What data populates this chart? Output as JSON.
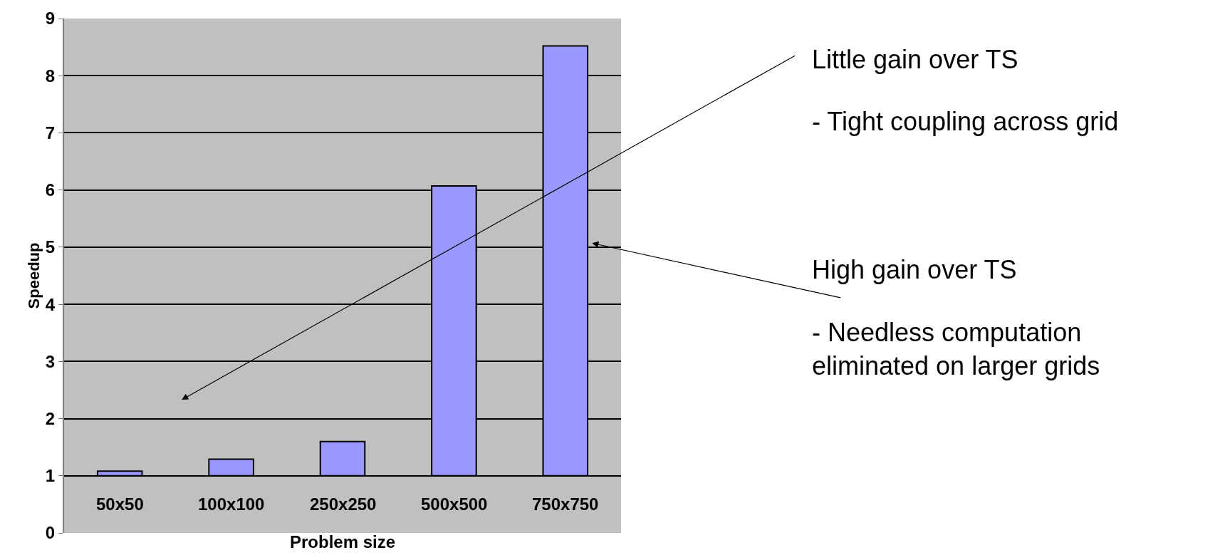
{
  "chart_data": {
    "type": "bar",
    "xlabel": "Problem size",
    "ylabel": "Speedup",
    "categories": [
      "50x50",
      "100x100",
      "250x250",
      "500x500",
      "750x750"
    ],
    "base": [
      1,
      1,
      1,
      1,
      1
    ],
    "values": [
      0.08,
      0.29,
      0.6,
      5.07,
      7.52
    ],
    "color": "#9999ff",
    "ylim": [
      0,
      9
    ],
    "yticks": [
      0,
      1,
      2,
      3,
      4,
      5,
      6,
      7,
      8,
      9
    ],
    "grid": "y",
    "annotations": [
      "Little gain over TS",
      "- Tight coupling across grid",
      "High gain over TS",
      "- Needless computation\neliminated on larger grids"
    ]
  }
}
